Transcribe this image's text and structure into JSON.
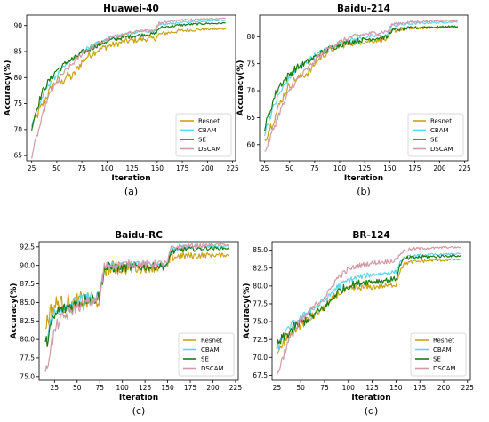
{
  "chart_data": [
    {
      "type": "line",
      "panel_label": "(a)",
      "title": "Huawei-40",
      "xlabel": "Iteration",
      "ylabel": "Accuracy(%)",
      "xlim": [
        20,
        228
      ],
      "ylim": [
        64,
        92
      ],
      "xticks": [
        25,
        50,
        75,
        100,
        125,
        150,
        175,
        200,
        225
      ],
      "yticks": [
        65,
        70,
        75,
        80,
        85,
        90
      ],
      "legend_position": "lower-right",
      "x": [
        25,
        30,
        35,
        40,
        45,
        50,
        55,
        60,
        65,
        70,
        75,
        80,
        90,
        100,
        110,
        120,
        130,
        140,
        148,
        152,
        160,
        170,
        180,
        190,
        200,
        210,
        218
      ],
      "series": [
        {
          "name": "Resnet",
          "color": "#c9a216",
          "values": [
            70.5,
            72.5,
            74.5,
            76.5,
            78,
            79.5,
            79,
            80.5,
            80,
            81.5,
            83,
            84,
            85.2,
            86,
            86.5,
            87,
            87.2,
            87.4,
            87.5,
            88.3,
            88.6,
            88.9,
            89.1,
            89.2,
            89.3,
            89.3,
            89.4
          ],
          "noise": 1.0
        },
        {
          "name": "CBAM",
          "color": "#5fd3ec",
          "values": [
            71,
            73.5,
            76,
            78,
            79.5,
            80.5,
            81.5,
            82.5,
            83.5,
            84,
            84.8,
            85.5,
            86.6,
            87.5,
            88,
            88.4,
            88.7,
            88.9,
            89.0,
            90.0,
            90.3,
            90.5,
            90.7,
            90.8,
            90.9,
            91.0,
            91.0
          ],
          "noise": 0.6
        },
        {
          "name": "SE",
          "color": "#1b7a12",
          "values": [
            70.5,
            74,
            77,
            78.8,
            80,
            81.5,
            82,
            83,
            83.5,
            84,
            84.8,
            85.2,
            86.2,
            87,
            87.5,
            87.8,
            88.1,
            88.3,
            88.4,
            89.5,
            89.8,
            90.0,
            90.2,
            90.3,
            90.4,
            90.4,
            90.5
          ],
          "noise": 0.7
        },
        {
          "name": "DSCAM",
          "color": "#d09aa6",
          "values": [
            65,
            68.5,
            72,
            75.5,
            77.5,
            79,
            80.5,
            81.5,
            82.5,
            83.5,
            84.5,
            85.3,
            86.5,
            87.3,
            88,
            88.5,
            88.8,
            89.0,
            89.2,
            90.5,
            90.8,
            91.0,
            91.1,
            91.2,
            91.3,
            91.3,
            91.4
          ],
          "noise": 0.6
        }
      ]
    },
    {
      "type": "line",
      "panel_label": "(b)",
      "title": "Baidu-214",
      "xlabel": "Iteration",
      "ylabel": "Accuracy(%)",
      "xlim": [
        20,
        228
      ],
      "ylim": [
        57,
        84
      ],
      "xticks": [
        25,
        50,
        75,
        100,
        125,
        150,
        175,
        200,
        225
      ],
      "yticks": [
        60,
        65,
        70,
        75,
        80
      ],
      "legend_position": "lower-right",
      "x": [
        25,
        30,
        35,
        40,
        45,
        50,
        55,
        60,
        65,
        70,
        75,
        80,
        90,
        100,
        110,
        120,
        130,
        140,
        148,
        152,
        160,
        170,
        180,
        190,
        200,
        210,
        218
      ],
      "series": [
        {
          "name": "Resnet",
          "color": "#c9a216",
          "values": [
            61,
            63,
            65,
            67.5,
            69.5,
            71,
            72,
            72.5,
            73,
            73.5,
            75,
            76,
            77.5,
            78.3,
            78.7,
            79,
            79.2,
            79.4,
            79.5,
            81,
            81.3,
            81.5,
            81.6,
            81.7,
            81.7,
            81.8,
            81.8
          ],
          "noise": 0.9
        },
        {
          "name": "CBAM",
          "color": "#5fd3ec",
          "values": [
            62,
            65,
            67.5,
            69.5,
            71,
            72.5,
            73.5,
            74.5,
            75,
            75.8,
            76.5,
            77,
            78,
            78.8,
            79.3,
            79.7,
            80,
            80.2,
            80.3,
            82,
            82.2,
            82.4,
            82.5,
            82.6,
            82.6,
            82.7,
            82.7
          ],
          "noise": 0.7
        },
        {
          "name": "SE",
          "color": "#1b7a12",
          "values": [
            63,
            66,
            69,
            71,
            72,
            73,
            74,
            74.5,
            75,
            75.5,
            76.2,
            76.8,
            77.8,
            78.5,
            79,
            79.3,
            79.6,
            79.8,
            79.9,
            81.2,
            81.4,
            81.6,
            81.7,
            81.8,
            81.8,
            81.9,
            81.9
          ],
          "noise": 0.8
        },
        {
          "name": "DSCAM",
          "color": "#d09aa6",
          "values": [
            58.5,
            61,
            63.5,
            66,
            68,
            70,
            71.5,
            72.5,
            73.5,
            74.5,
            75.5,
            76.5,
            78,
            79,
            79.8,
            80.3,
            80.6,
            80.8,
            81,
            82.3,
            82.5,
            82.7,
            82.8,
            82.9,
            82.9,
            83.0,
            83.0
          ],
          "noise": 0.7
        }
      ]
    },
    {
      "type": "line",
      "panel_label": "(c)",
      "title": "Baidu-RC",
      "xlabel": "Iteration",
      "ylabel": "Accuracy(%)",
      "xlim": [
        8,
        228
      ],
      "ylim": [
        74.5,
        93.2
      ],
      "xticks": [
        25,
        50,
        75,
        100,
        125,
        150,
        175,
        200,
        225
      ],
      "yticks": [
        75.0,
        77.5,
        80.0,
        82.5,
        85.0,
        87.5,
        90.0,
        92.5
      ],
      "legend_position": "lower-right",
      "x": [
        15,
        20,
        25,
        30,
        35,
        40,
        45,
        50,
        55,
        60,
        65,
        70,
        75,
        80,
        85,
        90,
        100,
        110,
        120,
        130,
        140,
        150,
        153,
        160,
        170,
        180,
        190,
        200,
        210,
        218
      ],
      "series": [
        {
          "name": "Resnet",
          "color": "#c9a216",
          "values": [
            82,
            83.5,
            84.5,
            85,
            84.5,
            85,
            84.5,
            85,
            85.5,
            85,
            85.5,
            85,
            85.5,
            89.5,
            89.6,
            89.7,
            89.6,
            89.7,
            89.7,
            89.8,
            89.7,
            89.8,
            91.0,
            91.2,
            91.3,
            91.3,
            91.4,
            91.4,
            91.4,
            91.4
          ],
          "noise": 1.4
        },
        {
          "name": "CBAM",
          "color": "#5fd3ec",
          "values": [
            80,
            82,
            83.5,
            84,
            84.5,
            84.5,
            85,
            85,
            85.5,
            85.5,
            86,
            85.5,
            86,
            89.8,
            90.0,
            90.0,
            90.0,
            90.1,
            90.1,
            90.1,
            90.2,
            90.2,
            92.0,
            92.3,
            92.4,
            92.5,
            92.5,
            92.6,
            92.6,
            92.6
          ],
          "noise": 0.9
        },
        {
          "name": "SE",
          "color": "#1b7a12",
          "values": [
            79,
            81.5,
            83,
            84,
            84,
            84.5,
            84.5,
            85,
            85,
            85.5,
            85.5,
            85.5,
            86,
            89.5,
            89.7,
            89.7,
            89.7,
            89.8,
            89.8,
            89.8,
            89.9,
            89.9,
            91.7,
            92.0,
            92.2,
            92.2,
            92.3,
            92.3,
            92.3,
            92.3
          ],
          "noise": 1.0
        },
        {
          "name": "DSCAM",
          "color": "#d09aa6",
          "values": [
            75,
            78.5,
            81,
            82.5,
            83,
            83.5,
            84,
            84.5,
            84.5,
            85,
            85,
            85.5,
            85.5,
            89.8,
            90.0,
            90.1,
            90.1,
            90.2,
            90.2,
            90.2,
            90.3,
            90.3,
            92.2,
            92.5,
            92.6,
            92.7,
            92.7,
            92.8,
            92.8,
            92.8
          ],
          "noise": 0.9
        }
      ]
    },
    {
      "type": "line",
      "panel_label": "(d)",
      "title": "BR-124",
      "xlabel": "Iteration",
      "ylabel": "Accuracy(%)",
      "xlim": [
        20,
        228
      ],
      "ylim": [
        66.8,
        86.2
      ],
      "xticks": [
        25,
        50,
        75,
        100,
        125,
        150,
        175,
        200,
        225
      ],
      "yticks": [
        67.5,
        70.0,
        72.5,
        75.0,
        77.5,
        80.0,
        82.5,
        85.0
      ],
      "legend_position": "lower-right",
      "x": [
        25,
        30,
        35,
        40,
        45,
        50,
        55,
        60,
        65,
        70,
        75,
        80,
        85,
        90,
        100,
        110,
        120,
        130,
        140,
        150,
        155,
        160,
        170,
        180,
        190,
        200,
        210,
        218
      ],
      "series": [
        {
          "name": "Resnet",
          "color": "#c9a216",
          "values": [
            70,
            71.5,
            72.5,
            73.5,
            74,
            74.5,
            75,
            75.5,
            76,
            76.5,
            77,
            77.5,
            78.5,
            79,
            79.5,
            79.7,
            79.8,
            79.9,
            80.0,
            80.2,
            82.5,
            83.2,
            83.4,
            83.5,
            83.6,
            83.6,
            83.7,
            83.7
          ],
          "noise": 0.7
        },
        {
          "name": "CBAM",
          "color": "#5fd3ec",
          "values": [
            71,
            72.5,
            73.5,
            74.5,
            75,
            75.5,
            76,
            76.5,
            77,
            77.5,
            78,
            78.5,
            79.5,
            80,
            80.8,
            81.2,
            81.5,
            81.7,
            81.8,
            82.0,
            83.5,
            84.0,
            84.2,
            84.3,
            84.4,
            84.4,
            84.5,
            84.5
          ],
          "noise": 0.6
        },
        {
          "name": "SE",
          "color": "#1b7a12",
          "values": [
            71.5,
            72.5,
            73,
            73.8,
            74.3,
            74.8,
            75.2,
            75.6,
            76,
            76.5,
            77,
            77.6,
            78.6,
            79.3,
            80,
            80.4,
            80.6,
            80.7,
            80.8,
            81.0,
            83.2,
            83.8,
            84.0,
            84.1,
            84.1,
            84.2,
            84.2,
            84.2
          ],
          "noise": 0.8
        },
        {
          "name": "DSCAM",
          "color": "#d09aa6",
          "values": [
            67.5,
            69.5,
            71.5,
            73,
            74,
            75,
            75.8,
            76.5,
            77.2,
            77.8,
            78.5,
            79.2,
            80.5,
            81.3,
            82.3,
            82.8,
            83.1,
            83.3,
            83.4,
            83.6,
            84.6,
            85.0,
            85.2,
            85.3,
            85.3,
            85.4,
            85.4,
            85.4
          ],
          "noise": 0.6
        }
      ]
    }
  ]
}
